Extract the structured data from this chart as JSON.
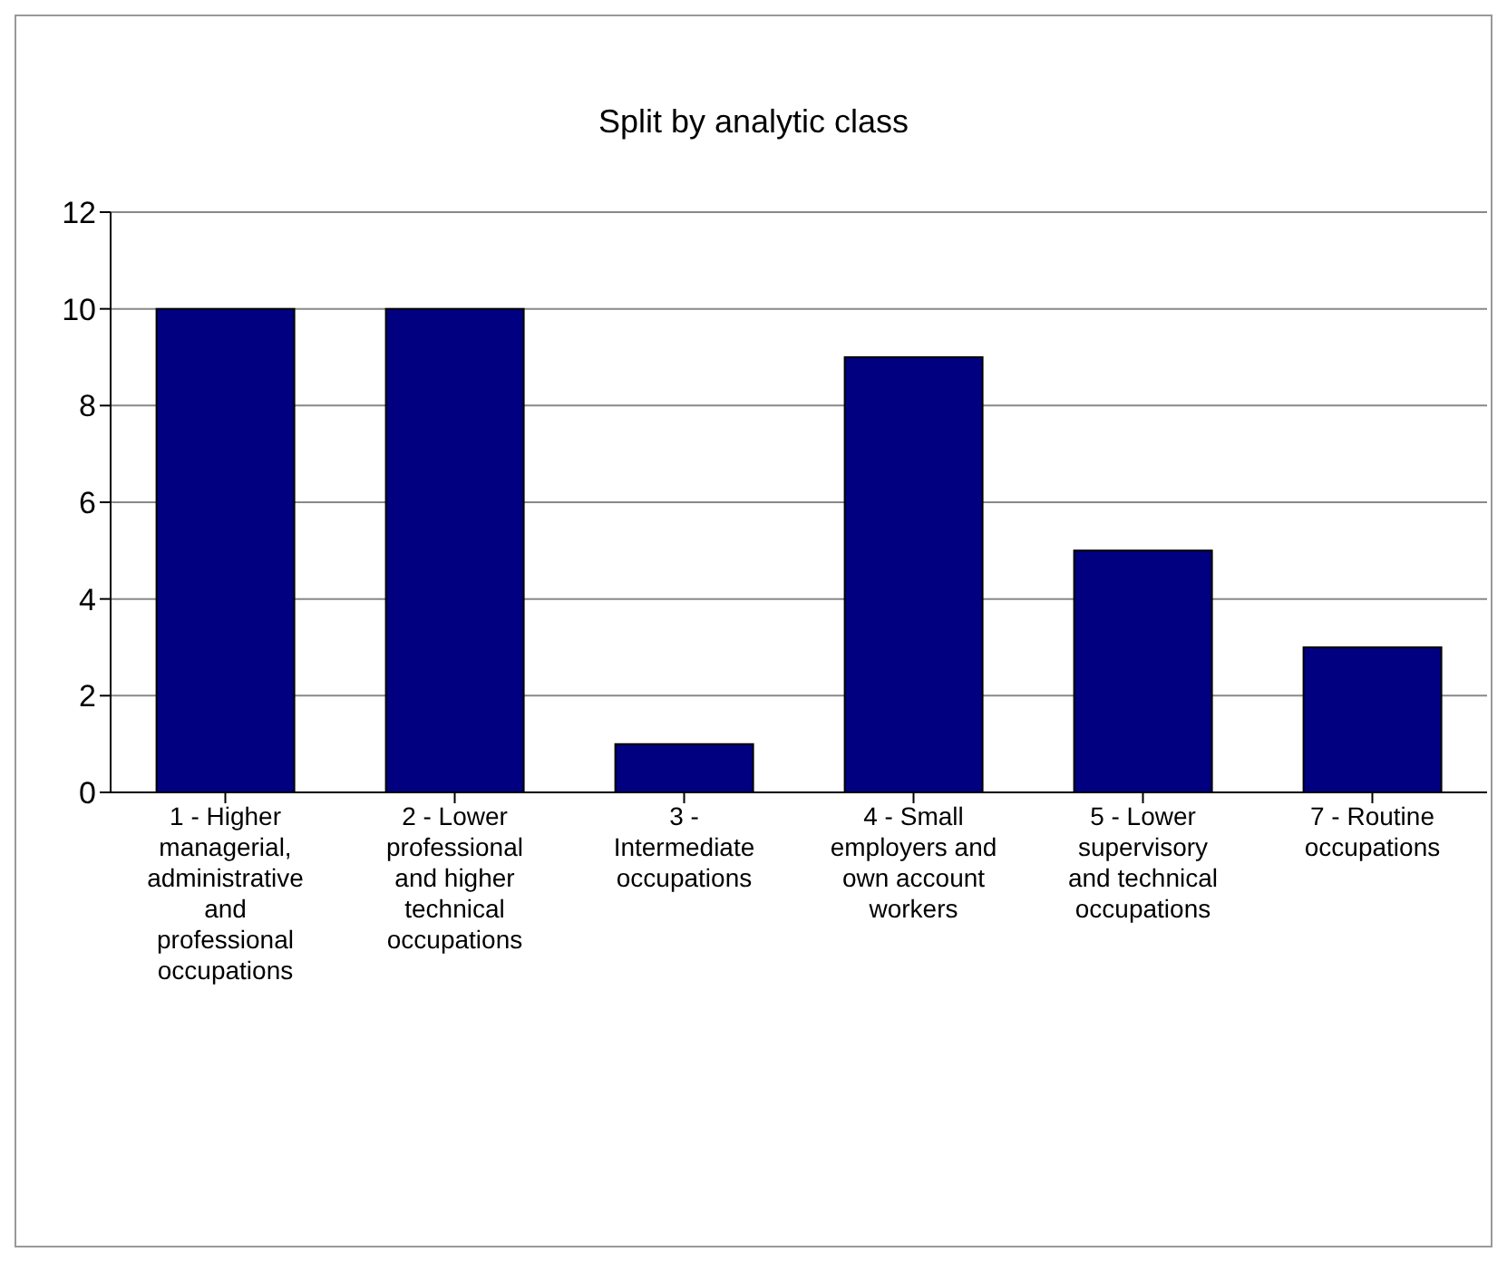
{
  "chart_data": {
    "type": "bar",
    "title": "Split by analytic class",
    "categories": [
      "1 - Higher managerial, administrative and professional occupations",
      "2 - Lower professional and higher technical occupations",
      "3 - Intermediate occupations",
      "4 - Small employers and own account workers",
      "5 - Lower supervisory and technical occupations",
      "7 - Routine occupations"
    ],
    "values": [
      10,
      10,
      1,
      9,
      5,
      3
    ],
    "color": "#000080",
    "ylim": [
      0,
      12
    ],
    "yticks": [
      0,
      2,
      4,
      6,
      8,
      10,
      12
    ],
    "grid": "y"
  }
}
